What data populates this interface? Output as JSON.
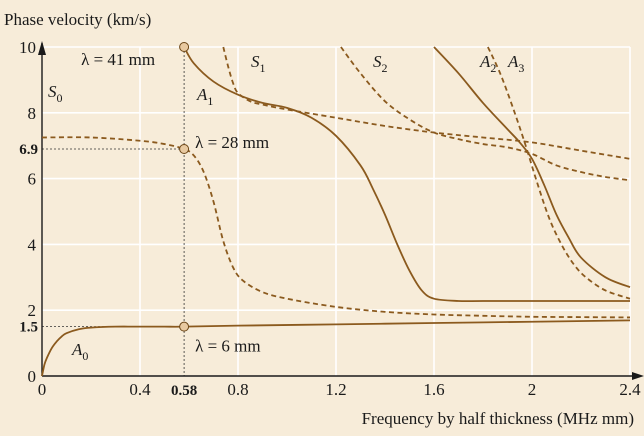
{
  "chart_data": {
    "type": "line",
    "title": "",
    "ylabel": "Phase velocity (km/s)",
    "xlabel": "Frequency by half thickness (MHz mm)",
    "xlim": [
      0,
      2.4
    ],
    "ylim": [
      0,
      10
    ],
    "x_ticks": [
      "0",
      "0.4",
      "0.8",
      "1.2",
      "1.6",
      "2",
      "2.4"
    ],
    "x_tick_values": [
      0,
      0.4,
      0.8,
      1.2,
      1.6,
      2.0,
      2.4
    ],
    "y_ticks": [
      "0",
      "2",
      "4",
      "6",
      "8",
      "10"
    ],
    "y_tick_values": [
      0,
      2,
      4,
      6,
      8,
      10
    ],
    "highlight_x": {
      "value": 0.58,
      "label": "0.58"
    },
    "highlight_y": [
      {
        "value": 6.9,
        "label": "6.9"
      },
      {
        "value": 1.5,
        "label": "1.5"
      }
    ],
    "grid": true,
    "colors": {
      "solid": "#8b5a1e",
      "dashed": "#8b5a1e",
      "grid": "#ffffff",
      "background": "#f7ecd9",
      "marker_fill": "#e8c9a0"
    },
    "series": [
      {
        "name": "A0",
        "label": "A",
        "sub": "0",
        "style": "solid",
        "x": [
          0.0,
          0.01,
          0.02,
          0.04,
          0.06,
          0.08,
          0.1,
          0.15,
          0.2,
          0.3,
          0.4,
          0.5,
          0.58,
          0.8,
          1.2,
          1.6,
          2.0,
          2.4
        ],
        "y": [
          0.0,
          0.35,
          0.55,
          0.85,
          1.05,
          1.2,
          1.3,
          1.42,
          1.47,
          1.5,
          1.5,
          1.5,
          1.5,
          1.53,
          1.57,
          1.61,
          1.65,
          1.69
        ]
      },
      {
        "name": "S0",
        "label": "S",
        "sub": "0",
        "style": "dashed",
        "x": [
          0.0,
          0.2,
          0.4,
          0.5,
          0.58,
          0.62,
          0.66,
          0.7,
          0.74,
          0.78,
          0.82,
          0.9,
          1.0,
          1.2,
          1.4,
          1.6,
          1.8,
          2.0,
          2.2,
          2.4
        ],
        "y": [
          7.25,
          7.25,
          7.15,
          7.05,
          6.9,
          6.7,
          6.2,
          5.3,
          4.1,
          3.3,
          2.9,
          2.55,
          2.35,
          2.1,
          1.95,
          1.87,
          1.83,
          1.8,
          1.79,
          1.78
        ]
      },
      {
        "name": "A1",
        "label": "A",
        "sub": "1",
        "style": "solid",
        "x": [
          0.58,
          0.62,
          0.7,
          0.8,
          0.9,
          1.0,
          1.1,
          1.2,
          1.3,
          1.35,
          1.4,
          1.45,
          1.5,
          1.55,
          1.6,
          1.7,
          1.8,
          2.0,
          2.2,
          2.4
        ],
        "y": [
          10.0,
          9.5,
          8.95,
          8.55,
          8.3,
          8.15,
          7.85,
          7.3,
          6.4,
          5.7,
          4.9,
          4.0,
          3.2,
          2.6,
          2.35,
          2.28,
          2.28,
          2.28,
          2.28,
          2.28
        ]
      },
      {
        "name": "S1",
        "label": "S",
        "sub": "1",
        "style": "dashed",
        "x": [
          0.74,
          0.76,
          0.78,
          0.8,
          0.85,
          0.9,
          1.0,
          1.2,
          1.4,
          1.6,
          1.8,
          2.0,
          2.2,
          2.4
        ],
        "y": [
          10.0,
          9.4,
          8.9,
          8.6,
          8.35,
          8.25,
          8.1,
          7.85,
          7.6,
          7.4,
          7.25,
          7.1,
          6.85,
          6.6
        ]
      },
      {
        "name": "S2",
        "label": "S",
        "sub": "2",
        "style": "dashed",
        "x": [
          1.22,
          1.3,
          1.4,
          1.5,
          1.6,
          1.7,
          1.8,
          1.9,
          2.0,
          2.1,
          2.2,
          2.3,
          2.4
        ],
        "y": [
          10.0,
          9.2,
          8.35,
          7.8,
          7.4,
          7.2,
          7.05,
          6.95,
          6.75,
          6.4,
          6.2,
          6.05,
          5.95
        ]
      },
      {
        "name": "A2",
        "label": "A",
        "sub": "2",
        "style": "solid",
        "x": [
          1.6,
          1.7,
          1.8,
          1.9,
          1.95,
          2.0,
          2.05,
          2.1,
          2.15,
          2.2,
          2.3,
          2.4
        ],
        "y": [
          10.0,
          9.2,
          8.3,
          7.5,
          7.1,
          6.6,
          5.8,
          4.9,
          4.2,
          3.6,
          3.0,
          2.7
        ]
      },
      {
        "name": "A3",
        "label": "A",
        "sub": "3",
        "style": "dashed",
        "x": [
          1.82,
          1.87,
          1.92,
          1.97,
          2.02,
          2.07,
          2.12,
          2.17,
          2.22,
          2.3,
          2.4
        ],
        "y": [
          10.0,
          9.2,
          8.2,
          7.1,
          5.9,
          4.8,
          4.0,
          3.4,
          3.0,
          2.6,
          2.35
        ]
      }
    ],
    "markers": [
      {
        "x": 0.58,
        "y": 10.0,
        "label": "λ = 41 mm"
      },
      {
        "x": 0.58,
        "y": 6.9,
        "label": "λ = 28 mm"
      },
      {
        "x": 0.58,
        "y": 1.5,
        "label": "λ = 6 mm"
      }
    ]
  }
}
